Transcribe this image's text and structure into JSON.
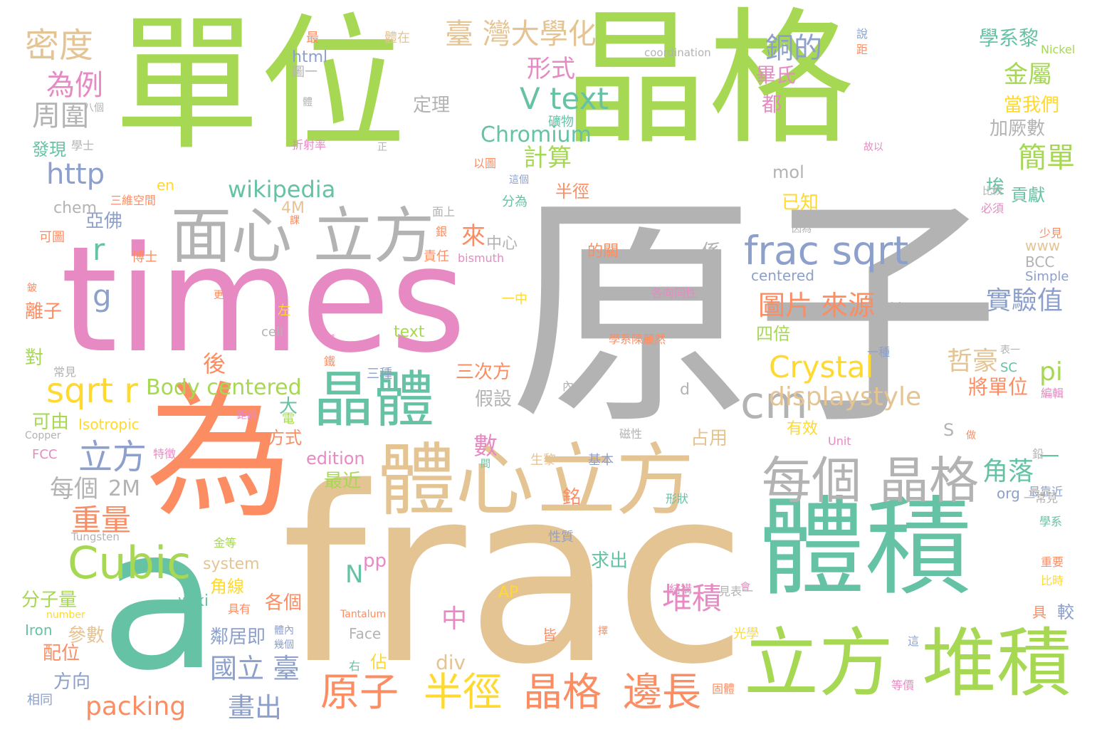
{
  "palette": {
    "green": "#a6d854",
    "teal": "#66c2a5",
    "pink": "#e78ac3",
    "gray": "#b3b3b3",
    "tan": "#e5c494",
    "orange": "#fc8d62",
    "blue": "#8da0cb",
    "yellow": "#ffd92f"
  },
  "words": [
    {
      "text": "單位",
      "color": "green"
    },
    {
      "text": "晶格",
      "color": "green"
    },
    {
      "text": "原子",
      "color": "gray"
    },
    {
      "text": "times",
      "color": "pink"
    },
    {
      "text": "frac",
      "color": "tan"
    },
    {
      "text": "為",
      "color": "orange"
    },
    {
      "text": "a",
      "color": "teal"
    },
    {
      "text": "體積",
      "color": "teal"
    },
    {
      "text": "體心",
      "color": "tan"
    },
    {
      "text": "立方",
      "color": "tan"
    },
    {
      "text": "立方",
      "color": "green"
    },
    {
      "text": "堆積",
      "color": "green"
    },
    {
      "text": "面心",
      "color": "gray"
    },
    {
      "text": "立方",
      "color": "gray"
    },
    {
      "text": "晶體",
      "color": "teal"
    },
    {
      "text": "每個",
      "color": "gray"
    },
    {
      "text": "晶格",
      "color": "gray"
    },
    {
      "text": "Cubic",
      "color": "green"
    },
    {
      "text": "cm",
      "color": "gray"
    },
    {
      "text": "frac sqrt",
      "color": "blue"
    },
    {
      "text": "原子",
      "color": "orange"
    },
    {
      "text": "半徑",
      "color": "yellow"
    },
    {
      "text": "晶格",
      "color": "orange"
    },
    {
      "text": "邊長",
      "color": "orange"
    },
    {
      "text": "密度",
      "color": "tan"
    },
    {
      "text": "臺 灣大學化",
      "color": "tan"
    },
    {
      "text": "為例",
      "color": "pink"
    },
    {
      "text": "周圍",
      "color": "gray"
    },
    {
      "text": "http",
      "color": "blue"
    },
    {
      "text": "sqrt r",
      "color": "yellow"
    },
    {
      "text": "立方",
      "color": "blue"
    },
    {
      "text": "銅的",
      "color": "blue"
    },
    {
      "text": "形式",
      "color": "pink"
    },
    {
      "text": "V text",
      "color": "teal"
    },
    {
      "text": "Chromium",
      "color": "teal"
    },
    {
      "text": "wikipedia",
      "color": "teal"
    },
    {
      "text": "計算",
      "color": "green"
    },
    {
      "text": "圖片 來源",
      "color": "orange"
    },
    {
      "text": "Crystal",
      "color": "yellow"
    },
    {
      "text": "displaystyle",
      "color": "tan"
    },
    {
      "text": "Body centered",
      "color": "green"
    },
    {
      "text": "packing",
      "color": "orange"
    },
    {
      "text": "國立 臺",
      "color": "blue"
    },
    {
      "text": "畫出",
      "color": "blue"
    },
    {
      "text": "堆積",
      "color": "pink"
    },
    {
      "text": "重量",
      "color": "orange"
    },
    {
      "text": "每個",
      "color": "gray"
    },
    {
      "text": "2M",
      "color": "gray"
    },
    {
      "text": "金屬",
      "color": "green"
    },
    {
      "text": "簡單",
      "color": "green"
    },
    {
      "text": "實驗值",
      "color": "blue"
    },
    {
      "text": "哲豪",
      "color": "tan"
    },
    {
      "text": "角落",
      "color": "teal"
    },
    {
      "text": "將單位",
      "color": "orange"
    },
    {
      "text": "pi",
      "color": "green"
    },
    {
      "text": "定理",
      "color": "gray"
    },
    {
      "text": "加厥數",
      "color": "gray"
    },
    {
      "text": "當我們",
      "color": "yellow"
    },
    {
      "text": "學系黎",
      "color": "teal"
    },
    {
      "text": "Nickel",
      "color": "green"
    },
    {
      "text": "coordination",
      "color": "gray"
    },
    {
      "text": "html",
      "color": "blue"
    },
    {
      "text": "圖一",
      "color": "gray"
    },
    {
      "text": "體在",
      "color": "tan"
    },
    {
      "text": "最",
      "color": "orange"
    },
    {
      "text": "畢氏",
      "color": "pink"
    },
    {
      "text": "都",
      "color": "pink"
    },
    {
      "text": "mol",
      "color": "gray"
    },
    {
      "text": "已知",
      "color": "yellow"
    },
    {
      "text": "埃",
      "color": "teal"
    },
    {
      "text": "貢獻",
      "color": "teal"
    },
    {
      "text": "半徑",
      "color": "orange"
    },
    {
      "text": "亞佛",
      "color": "blue"
    },
    {
      "text": "chem",
      "color": "gray"
    },
    {
      "text": "en",
      "color": "yellow"
    },
    {
      "text": "4M",
      "color": "tan"
    },
    {
      "text": "三維空間",
      "color": "orange"
    },
    {
      "text": "發現",
      "color": "teal"
    },
    {
      "text": "學士",
      "color": "gray"
    },
    {
      "text": "八個",
      "color": "gray"
    },
    {
      "text": "折射率",
      "color": "pink"
    },
    {
      "text": "以圖",
      "color": "orange"
    },
    {
      "text": "博士",
      "color": "orange"
    },
    {
      "text": "可圖",
      "color": "orange"
    },
    {
      "text": "r",
      "color": "teal"
    },
    {
      "text": "g",
      "color": "blue"
    },
    {
      "text": "離子",
      "color": "orange"
    },
    {
      "text": "對",
      "color": "green"
    },
    {
      "text": "後",
      "color": "orange"
    },
    {
      "text": "大",
      "color": "teal"
    },
    {
      "text": "可由",
      "color": "green"
    },
    {
      "text": "Copper",
      "color": "gray"
    },
    {
      "text": "Isotropic",
      "color": "yellow"
    },
    {
      "text": "FCC",
      "color": "pink"
    },
    {
      "text": "特徵",
      "color": "pink"
    },
    {
      "text": "Tungsten",
      "color": "gray"
    },
    {
      "text": "分子量",
      "color": "green"
    },
    {
      "text": "number",
      "color": "yellow"
    },
    {
      "text": "Iron",
      "color": "teal"
    },
    {
      "text": "配位",
      "color": "orange"
    },
    {
      "text": "方向",
      "color": "blue"
    },
    {
      "text": "相同",
      "color": "blue"
    },
    {
      "text": "參數",
      "color": "tan"
    },
    {
      "text": "角線",
      "color": "yellow"
    },
    {
      "text": "wiki",
      "color": "teal"
    },
    {
      "text": "system",
      "color": "tan"
    },
    {
      "text": "鄰居即",
      "color": "blue"
    },
    {
      "text": "各個",
      "color": "orange"
    },
    {
      "text": "佔",
      "color": "yellow"
    },
    {
      "text": "右",
      "color": "teal"
    },
    {
      "text": "Face",
      "color": "gray"
    },
    {
      "text": "Tantalum",
      "color": "orange"
    },
    {
      "text": "AP",
      "color": "yellow"
    },
    {
      "text": "N",
      "color": "teal"
    },
    {
      "text": "pp",
      "color": "pink"
    },
    {
      "text": "中",
      "color": "pink"
    },
    {
      "text": "div",
      "color": "tan"
    },
    {
      "text": "數",
      "color": "pink"
    },
    {
      "text": "三次方",
      "color": "orange"
    },
    {
      "text": "假設",
      "color": "gray"
    },
    {
      "text": "最近",
      "color": "green"
    },
    {
      "text": "edition",
      "color": "pink"
    },
    {
      "text": "方式",
      "color": "orange"
    },
    {
      "text": "text",
      "color": "green"
    },
    {
      "text": "cell",
      "color": "gray"
    },
    {
      "text": "三種",
      "color": "blue"
    },
    {
      "text": "中心",
      "color": "gray"
    },
    {
      "text": "來",
      "color": "orange"
    },
    {
      "text": "分為",
      "color": "teal"
    },
    {
      "text": "面上",
      "color": "gray"
    },
    {
      "text": "責任",
      "color": "orange"
    },
    {
      "text": "bismuth",
      "color": "pink"
    },
    {
      "text": "的關",
      "color": "orange"
    },
    {
      "text": "係",
      "color": "gray"
    },
    {
      "text": "centered",
      "color": "blue"
    },
    {
      "text": "www",
      "color": "tan"
    },
    {
      "text": "BCC",
      "color": "gray"
    },
    {
      "text": "Simple",
      "color": "blue"
    },
    {
      "text": "各向同性",
      "color": "pink"
    },
    {
      "text": "學系陳麗然",
      "color": "orange"
    },
    {
      "text": "四倍",
      "color": "green"
    },
    {
      "text": "一種",
      "color": "blue"
    },
    {
      "text": "SC",
      "color": "teal"
    },
    {
      "text": "S",
      "color": "gray"
    },
    {
      "text": "d",
      "color": "gray"
    },
    {
      "text": "Unit",
      "color": "pink"
    },
    {
      "text": "占用",
      "color": "tan"
    },
    {
      "text": "有效",
      "color": "yellow"
    },
    {
      "text": "磁性",
      "color": "gray"
    },
    {
      "text": "一",
      "color": "teal"
    },
    {
      "text": "org",
      "color": "blue"
    },
    {
      "text": "最靠近",
      "color": "blue"
    },
    {
      "text": "一常見",
      "color": "gray"
    },
    {
      "text": "學系",
      "color": "teal"
    },
    {
      "text": "重要",
      "color": "orange"
    },
    {
      "text": "比時",
      "color": "yellow"
    },
    {
      "text": "較",
      "color": "blue"
    },
    {
      "text": "具",
      "color": "orange"
    },
    {
      "text": "等價",
      "color": "pink"
    },
    {
      "text": "求出",
      "color": "teal"
    },
    {
      "text": "性質",
      "color": "blue"
    },
    {
      "text": "基本",
      "color": "blue"
    },
    {
      "text": "生黎",
      "color": "tan"
    },
    {
      "text": "形狀",
      "color": "teal"
    },
    {
      "text": "銘",
      "color": "orange"
    },
    {
      "text": "結構",
      "color": "pink"
    },
    {
      "text": "見表一",
      "color": "gray"
    },
    {
      "text": "光學",
      "color": "yellow"
    },
    {
      "text": "固體",
      "color": "orange"
    },
    {
      "text": "皆",
      "color": "orange"
    },
    {
      "text": "一中",
      "color": "yellow"
    },
    {
      "text": "左",
      "color": "yellow"
    },
    {
      "text": "電",
      "color": "green"
    },
    {
      "text": "稱",
      "color": "pink"
    },
    {
      "text": "鐵",
      "color": "orange"
    },
    {
      "text": "常見",
      "color": "gray"
    },
    {
      "text": "距離",
      "color": "pink"
    },
    {
      "text": "內",
      "color": "gray"
    },
    {
      "text": "正",
      "color": "gray"
    },
    {
      "text": "故以",
      "color": "pink"
    },
    {
      "text": "說",
      "color": "blue"
    },
    {
      "text": "距",
      "color": "orange"
    },
    {
      "text": "比較",
      "color": "gray"
    },
    {
      "text": "必須",
      "color": "pink"
    },
    {
      "text": "少見",
      "color": "orange"
    },
    {
      "text": "因為",
      "color": "gray"
    },
    {
      "text": "這個",
      "color": "blue"
    },
    {
      "text": "體",
      "color": "gray"
    },
    {
      "text": "礦物",
      "color": "teal"
    },
    {
      "text": "鉛",
      "color": "gray"
    },
    {
      "text": "做",
      "color": "orange"
    },
    {
      "text": "表一",
      "color": "gray"
    },
    {
      "text": "離會",
      "color": "gray"
    },
    {
      "text": "編輯",
      "color": "pink"
    },
    {
      "text": "金等",
      "color": "green"
    },
    {
      "text": "具有",
      "color": "orange"
    },
    {
      "text": "體內",
      "color": "blue"
    },
    {
      "text": "幾個",
      "color": "blue"
    },
    {
      "text": "會",
      "color": "pink"
    },
    {
      "text": "這",
      "color": "blue"
    },
    {
      "text": "間",
      "color": "teal"
    },
    {
      "text": "銀",
      "color": "orange"
    },
    {
      "text": "課",
      "color": "orange"
    },
    {
      "text": "更",
      "color": "orange"
    },
    {
      "text": "鈹",
      "color": "orange"
    },
    {
      "text": "擇",
      "color": "orange"
    }
  ]
}
